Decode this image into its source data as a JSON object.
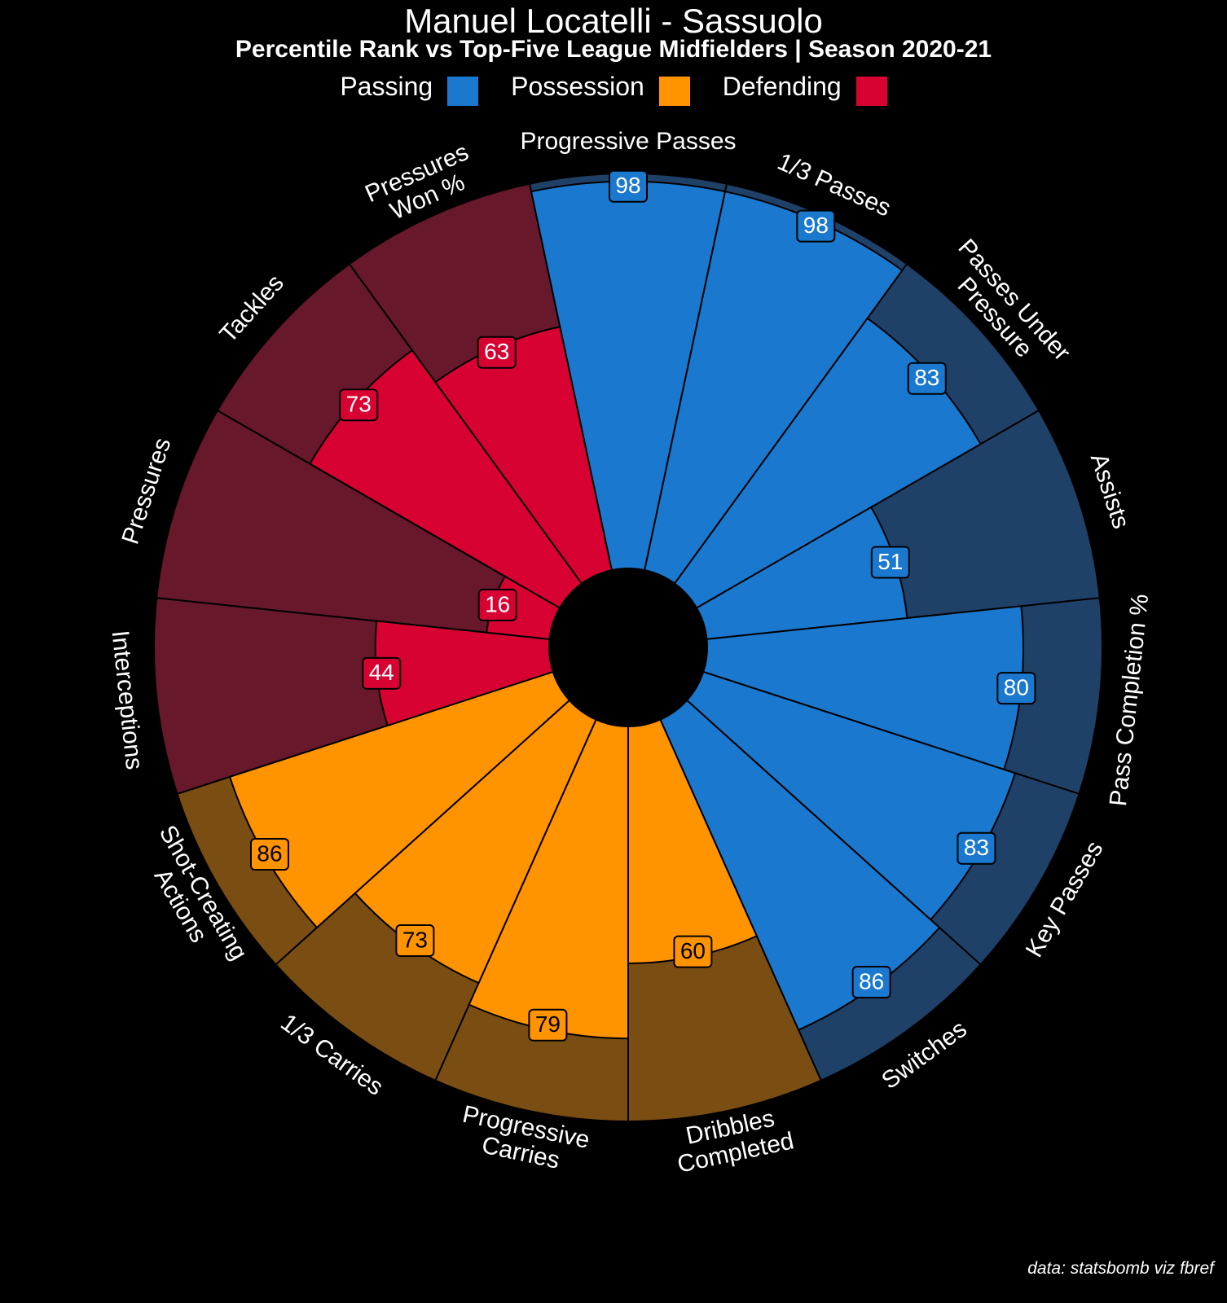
{
  "chart_data": {
    "type": "radar-bar",
    "title": "Manuel Locatelli - Sassuolo",
    "subtitle": "Percentile Rank vs Top-Five League Midfielders | Season 2020-21",
    "range": [
      0,
      100
    ],
    "legend": [
      {
        "name": "Passing",
        "color": "#1a78cf",
        "bg": "#1f4067"
      },
      {
        "name": "Possession",
        "color": "#ff9300",
        "bg": "#7a4e12"
      },
      {
        "name": "Defending",
        "color": "#d70232",
        "bg": "#67182b"
      }
    ],
    "categories": [
      {
        "label": [
          "Progressive Passes"
        ],
        "value": 98,
        "group": "Passing"
      },
      {
        "label": [
          "1/3 Passes"
        ],
        "value": 98,
        "group": "Passing"
      },
      {
        "label": [
          "Passes Under",
          "Pressure"
        ],
        "value": 83,
        "group": "Passing"
      },
      {
        "label": [
          "Assists"
        ],
        "value": 51,
        "group": "Passing"
      },
      {
        "label": [
          "Pass Completion %"
        ],
        "value": 80,
        "group": "Passing"
      },
      {
        "label": [
          "Key Passes"
        ],
        "value": 83,
        "group": "Passing"
      },
      {
        "label": [
          "Switches"
        ],
        "value": 86,
        "group": "Passing"
      },
      {
        "label": [
          "Dribbles",
          "Completed"
        ],
        "value": 60,
        "group": "Possession"
      },
      {
        "label": [
          "Progressive",
          "Carries"
        ],
        "value": 79,
        "group": "Possession"
      },
      {
        "label": [
          "1/3 Carries"
        ],
        "value": 73,
        "group": "Possession"
      },
      {
        "label": [
          "Shot-Creating",
          "Actions"
        ],
        "value": 86,
        "group": "Possession"
      },
      {
        "label": [
          "Interceptions"
        ],
        "value": 44,
        "group": "Defending"
      },
      {
        "label": [
          "Pressures"
        ],
        "value": 16,
        "group": "Defending"
      },
      {
        "label": [
          "Tackles"
        ],
        "value": 73,
        "group": "Defending"
      },
      {
        "label": [
          "Pressures",
          "Won %"
        ],
        "value": 63,
        "group": "Defending"
      }
    ],
    "source": "data: statsbomb viz fbref"
  }
}
